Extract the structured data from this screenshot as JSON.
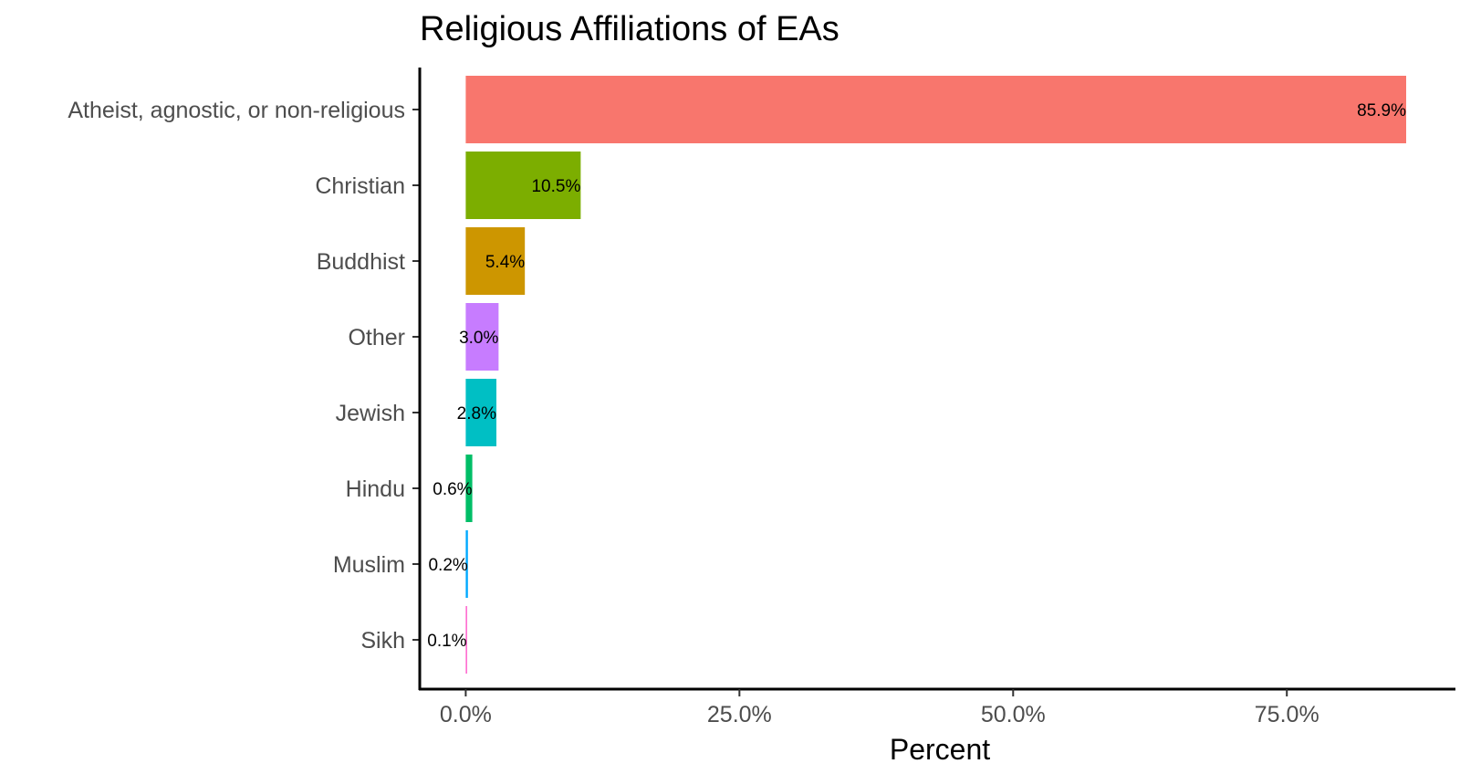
{
  "chart_data": {
    "type": "bar",
    "orientation": "horizontal",
    "title": "Religious Affiliations of EAs",
    "xlabel": "Percent",
    "ylabel": "",
    "xlim": [
      -4.2,
      90.4
    ],
    "xticks": [
      0,
      25,
      50,
      75
    ],
    "xtick_labels": [
      "0.0%",
      "25.0%",
      "50.0%",
      "75.0%"
    ],
    "grid": false,
    "legend": "none",
    "categories": [
      "Atheist, agnostic, or non-religious",
      "Christian",
      "Buddhist",
      "Other",
      "Jewish",
      "Hindu",
      "Muslim",
      "Sikh"
    ],
    "values": [
      85.9,
      10.5,
      5.4,
      3.0,
      2.8,
      0.6,
      0.2,
      0.1
    ],
    "data_labels": [
      "85.9%",
      "10.5%",
      "5.4%",
      "3.0%",
      "2.8%",
      "0.6%",
      "0.2%",
      "0.1%"
    ],
    "colors": [
      "#F8766D",
      "#7CAE00",
      "#CD9600",
      "#C77CFF",
      "#00BFC4",
      "#00BE67",
      "#00A9FF",
      "#FF61CC"
    ]
  }
}
